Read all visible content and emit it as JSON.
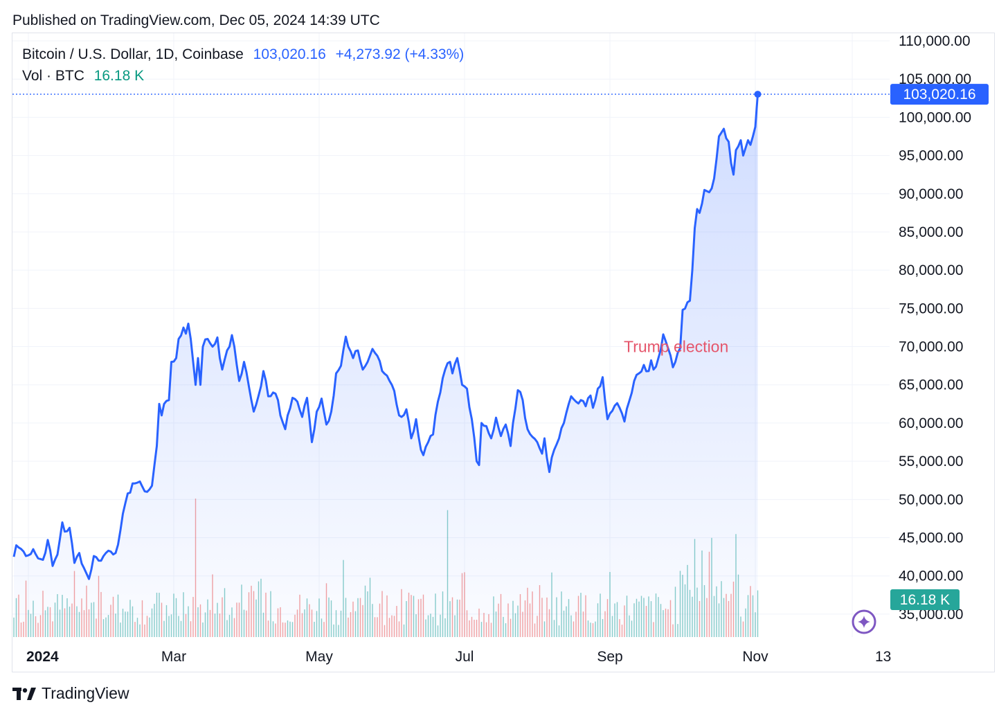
{
  "header": {
    "published": "Published on TradingView.com, Dec 05, 2024 14:39 UTC"
  },
  "legend": {
    "symbol": "Bitcoin / U.S. Dollar, 1D, Coinbase",
    "price": "103,020.16",
    "change": "+4,273.92 (+4.33%)",
    "vol_label": "Vol · BTC",
    "vol_value": "16.18 K"
  },
  "badges": {
    "price": "103,020.16",
    "volume": "16.18 K"
  },
  "footer": {
    "brand": "TradingView"
  },
  "colors": {
    "line": "#2962ff",
    "volume_up": "#26a69a",
    "volume_down": "#ef5350",
    "annotation": "#e5566b",
    "price_badge": "#2962ff",
    "volume_badge": "#26a69a"
  },
  "chart_data": {
    "type": "area",
    "title": "Bitcoin / U.S. Dollar, 1D, Coinbase",
    "ylim": [
      32000,
      111000
    ],
    "yticks": [
      35000,
      40000,
      45000,
      50000,
      55000,
      60000,
      65000,
      70000,
      75000,
      80000,
      85000,
      90000,
      95000,
      100000,
      105000,
      110000
    ],
    "ytick_labels": [
      "35,000.00",
      "40,000.00",
      "45,000.00",
      "50,000.00",
      "55,000.00",
      "60,000.00",
      "65,000.00",
      "70,000.00",
      "75,000.00",
      "80,000.00",
      "85,000.00",
      "90,000.00",
      "95,000.00",
      "100,000.00",
      "105,000.00",
      "110,000.00"
    ],
    "x_range_days": [
      0,
      346
    ],
    "xticks": [
      {
        "day": 6,
        "label": "2024",
        "bold": true
      },
      {
        "day": 66,
        "label": "Mar"
      },
      {
        "day": 126,
        "label": "May"
      },
      {
        "day": 186,
        "label": "Jul"
      },
      {
        "day": 246,
        "label": "Sep"
      },
      {
        "day": 306,
        "label": "Nov"
      },
      {
        "day": 346,
        "label": "13"
      }
    ],
    "price_keypoints": [
      [
        0,
        42500
      ],
      [
        1,
        44000
      ],
      [
        4,
        43200
      ],
      [
        6,
        42700
      ],
      [
        8,
        43500
      ],
      [
        10,
        42300
      ],
      [
        12,
        42100
      ],
      [
        14,
        44700
      ],
      [
        16,
        41300
      ],
      [
        18,
        42800
      ],
      [
        20,
        47000
      ],
      [
        21,
        45800
      ],
      [
        23,
        46300
      ],
      [
        25,
        41700
      ],
      [
        27,
        43000
      ],
      [
        29,
        41000
      ],
      [
        31,
        39600
      ],
      [
        33,
        42600
      ],
      [
        35,
        42000
      ],
      [
        37,
        42600
      ],
      [
        39,
        43300
      ],
      [
        42,
        43000
      ],
      [
        44,
        46000
      ],
      [
        46,
        49500
      ],
      [
        49,
        52100
      ],
      [
        51,
        52200
      ],
      [
        53,
        51700
      ],
      [
        55,
        51000
      ],
      [
        57,
        51800
      ],
      [
        59,
        57000
      ],
      [
        60,
        62500
      ],
      [
        61,
        61000
      ],
      [
        62,
        62500
      ],
      [
        64,
        63000
      ],
      [
        65,
        68000
      ],
      [
        67,
        68500
      ],
      [
        68,
        71000
      ],
      [
        70,
        72500
      ],
      [
        71,
        71700
      ],
      [
        72,
        73000
      ],
      [
        73,
        71000
      ],
      [
        74,
        68000
      ],
      [
        75,
        65000
      ],
      [
        76,
        68500
      ],
      [
        77,
        65000
      ],
      [
        78,
        70000
      ],
      [
        80,
        71000
      ],
      [
        82,
        70000
      ],
      [
        84,
        71200
      ],
      [
        85,
        68500
      ],
      [
        86,
        67000
      ],
      [
        88,
        69500
      ],
      [
        89,
        70000
      ],
      [
        90,
        71500
      ],
      [
        91,
        70000
      ],
      [
        93,
        65500
      ],
      [
        95,
        68000
      ],
      [
        97,
        64800
      ],
      [
        99,
        61500
      ],
      [
        101,
        63600
      ],
      [
        103,
        66800
      ],
      [
        105,
        63500
      ],
      [
        107,
        64000
      ],
      [
        109,
        63000
      ],
      [
        110,
        61000
      ],
      [
        112,
        59200
      ],
      [
        113,
        61000
      ],
      [
        115,
        63300
      ],
      [
        117,
        62800
      ],
      [
        119,
        60800
      ],
      [
        121,
        63300
      ],
      [
        123,
        57500
      ],
      [
        125,
        61500
      ],
      [
        127,
        63200
      ],
      [
        129,
        59800
      ],
      [
        131,
        61500
      ],
      [
        133,
        66500
      ],
      [
        135,
        67500
      ],
      [
        137,
        71300
      ],
      [
        138,
        70000
      ],
      [
        140,
        68500
      ],
      [
        142,
        69500
      ],
      [
        144,
        67000
      ],
      [
        146,
        68000
      ],
      [
        148,
        69700
      ],
      [
        150,
        68800
      ],
      [
        152,
        66800
      ],
      [
        154,
        66200
      ],
      [
        156,
        65000
      ],
      [
        157,
        64200
      ],
      [
        159,
        61000
      ],
      [
        160,
        60800
      ],
      [
        162,
        61800
      ],
      [
        164,
        58000
      ],
      [
        166,
        60500
      ],
      [
        168,
        56500
      ],
      [
        169,
        55800
      ],
      [
        171,
        57500
      ],
      [
        173,
        58500
      ],
      [
        175,
        62800
      ],
      [
        176,
        64000
      ],
      [
        178,
        67000
      ],
      [
        180,
        68000
      ],
      [
        181,
        66500
      ],
      [
        183,
        68500
      ],
      [
        185,
        65000
      ],
      [
        187,
        64500
      ],
      [
        189,
        60500
      ],
      [
        190,
        58100
      ],
      [
        191,
        55000
      ],
      [
        192,
        54500
      ],
      [
        193,
        60000
      ],
      [
        195,
        59600
      ],
      [
        197,
        58000
      ],
      [
        199,
        60700
      ],
      [
        201,
        58300
      ],
      [
        203,
        59800
      ],
      [
        205,
        57000
      ],
      [
        206,
        60000
      ],
      [
        208,
        64300
      ],
      [
        210,
        63000
      ],
      [
        212,
        59200
      ],
      [
        214,
        58200
      ],
      [
        216,
        57500
      ],
      [
        218,
        56000
      ],
      [
        219,
        58000
      ],
      [
        221,
        53600
      ],
      [
        223,
        56500
      ],
      [
        225,
        58000
      ],
      [
        227,
        60000
      ],
      [
        229,
        62500
      ],
      [
        230,
        63500
      ],
      [
        232,
        62800
      ],
      [
        234,
        63000
      ],
      [
        236,
        62200
      ],
      [
        238,
        63600
      ],
      [
        239,
        62000
      ],
      [
        241,
        64500
      ],
      [
        243,
        66000
      ],
      [
        245,
        60500
      ],
      [
        247,
        61600
      ],
      [
        249,
        62600
      ],
      [
        250,
        62000
      ],
      [
        252,
        60200
      ],
      [
        254,
        62900
      ],
      [
        256,
        65500
      ],
      [
        258,
        66500
      ],
      [
        260,
        67600
      ],
      [
        262,
        66800
      ],
      [
        263,
        68200
      ],
      [
        264,
        67000
      ],
      [
        266,
        68500
      ],
      [
        268,
        71600
      ],
      [
        270,
        69800
      ],
      [
        272,
        67300
      ],
      [
        273,
        68000
      ],
      [
        275,
        69800
      ],
      [
        276,
        74800
      ],
      [
        278,
        75800
      ],
      [
        279,
        76000
      ],
      [
        280,
        80000
      ],
      [
        281,
        85500
      ],
      [
        282,
        88000
      ],
      [
        283,
        87500
      ],
      [
        284,
        88700
      ],
      [
        285,
        90500
      ],
      [
        287,
        90200
      ],
      [
        289,
        92000
      ],
      [
        291,
        97500
      ],
      [
        293,
        98500
      ],
      [
        295,
        96800
      ],
      [
        296,
        94000
      ],
      [
        297,
        92500
      ],
      [
        298,
        95700
      ],
      [
        300,
        97000
      ],
      [
        301,
        95000
      ],
      [
        302,
        96000
      ],
      [
        303,
        97000
      ],
      [
        304,
        96400
      ],
      [
        305,
        97500
      ],
      [
        306,
        98750
      ],
      [
        307,
        103020
      ]
    ],
    "last_price": 103020.16,
    "volume": {
      "unit": "K BTC",
      "last": 16.18,
      "ylim": [
        0,
        60
      ],
      "spikes": [
        {
          "day": 75,
          "value": 48
        },
        {
          "day": 179,
          "value": 44
        },
        {
          "day": 281,
          "value": 34
        },
        {
          "day": 284,
          "value": 30
        }
      ]
    },
    "annotations": [
      {
        "text": "Trump election",
        "day": 276,
        "price": 70000
      }
    ]
  }
}
